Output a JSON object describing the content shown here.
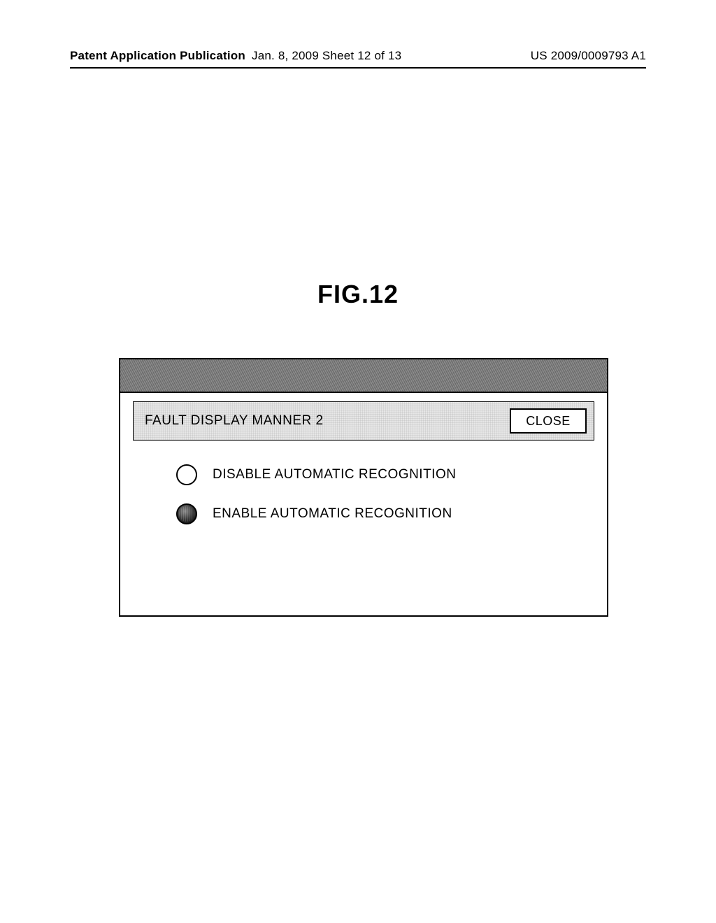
{
  "page_header": {
    "left": "Patent Application Publication",
    "middle": "Jan. 8, 2009   Sheet 12 of 13",
    "right": "US 2009/0009793 A1"
  },
  "figure_label": "FIG.12",
  "dialog": {
    "title": "FAULT DISPLAY MANNER 2",
    "close_label": "CLOSE",
    "options": [
      {
        "label": "DISABLE AUTOMATIC RECOGNITION",
        "selected": false
      },
      {
        "label": "ENABLE AUTOMATIC RECOGNITION",
        "selected": true
      }
    ],
    "style": {
      "border_color": "#000000",
      "titlebar_hatch_colors": [
        "#6a6a6a",
        "#8e8e8e"
      ],
      "header_strip_bg": "#e6e6e6",
      "close_bg": "#ffffff",
      "font_color": "#000000",
      "radio_border": "#000000"
    }
  }
}
